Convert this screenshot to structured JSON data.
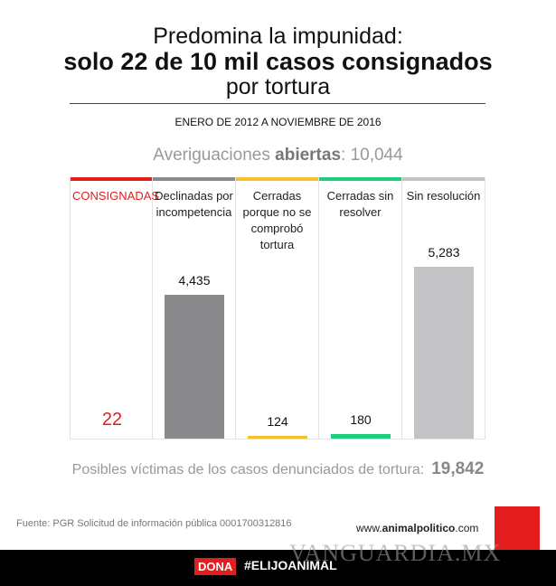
{
  "title": {
    "line1": "Predomina la impunidad:",
    "line2": "solo 22 de 10 mil casos consignados",
    "line3": "por tortura"
  },
  "period": "ENERO DE 2012 A NOVIEMBRE DE 2016",
  "total": {
    "label": "Averiguaciones",
    "bold": "abiertas",
    "sep": ":",
    "value": "10,044"
  },
  "chart_data": {
    "type": "bar",
    "categories": [
      "CONSIGNADAS",
      "Declinadas por incompetencia",
      "Cerradas porque no se comprobó tortura",
      "Cerradas sin resolver",
      "Sin resolución"
    ],
    "values": [
      22,
      4435,
      124,
      180,
      5283
    ],
    "labels": [
      "22",
      "4,435",
      "124",
      "180",
      "5,283"
    ],
    "colors": [
      "#e41e1e",
      "#8a8a8c",
      "#f5c02c",
      "#1fce7c",
      "#c3c3c6"
    ]
  },
  "victims": {
    "label": "Posibles víctimas de los casos denunciados de tortura:",
    "value": "19,842"
  },
  "footer": {
    "source": "Fuente: PGR Solicitud de información pública 0001700312816",
    "site_pre": "www.",
    "site_bold": "animalpolitico",
    "site_post": ".com",
    "watermark": "VANGUARDIA.MX",
    "dona": "DONA",
    "hashtag": "#ELIJOANIMAL"
  }
}
